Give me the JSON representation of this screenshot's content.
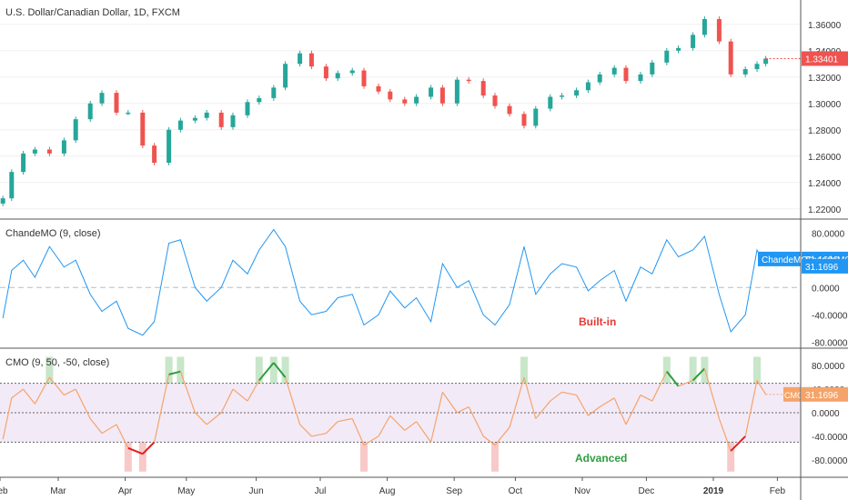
{
  "chart_data": [
    {
      "type": "candlestick",
      "title": "U.S. Dollar/Canadian Dollar, 1D, FXCM",
      "ylim": [
        1.215,
        1.375
      ],
      "y_ticks": [
        "1.22000",
        "1.24000",
        "1.26000",
        "1.28000",
        "1.30000",
        "1.32000",
        "1.34000",
        "1.36000"
      ],
      "last_price_label": "1.33401",
      "colors": {
        "up": "#26a69a",
        "down": "#ef5350",
        "price_tag": "#ef5350"
      },
      "series": [
        {
          "name": "close",
          "x": [
            1,
            4,
            8,
            12,
            17,
            22,
            26,
            31,
            35,
            40,
            44,
            49,
            53,
            58,
            62,
            67,
            71,
            76,
            80,
            85,
            89,
            94,
            98,
            103,
            107,
            112,
            116,
            121,
            125,
            130,
            134,
            139,
            143,
            148,
            152,
            157,
            161,
            166,
            170,
            175,
            180,
            184,
            189,
            193,
            198,
            202,
            206,
            211,
            215,
            220,
            224,
            229,
            233,
            238,
            242,
            247,
            251,
            256,
            260,
            263
          ],
          "values": [
            1.228,
            1.248,
            1.262,
            1.265,
            1.262,
            1.272,
            1.288,
            1.3,
            1.308,
            1.293,
            1.293,
            1.268,
            1.255,
            1.28,
            1.287,
            1.289,
            1.293,
            1.282,
            1.291,
            1.301,
            1.304,
            1.312,
            1.33,
            1.338,
            1.328,
            1.319,
            1.323,
            1.325,
            1.313,
            1.309,
            1.303,
            1.3,
            1.305,
            1.312,
            1.3,
            1.318,
            1.317,
            1.306,
            1.298,
            1.292,
            1.283,
            1.296,
            1.305,
            1.306,
            1.31,
            1.316,
            1.322,
            1.327,
            1.317,
            1.322,
            1.331,
            1.34,
            1.342,
            1.352,
            1.364,
            1.347,
            1.322,
            1.326,
            1.33,
            1.334
          ]
        }
      ]
    },
    {
      "type": "line",
      "title": "ChandeMO (9, close)",
      "annotation": "Built-in",
      "ylim": [
        -85,
        95
      ],
      "y_ticks": [
        "80.0000",
        "40.0000",
        "0.0000",
        "-40.0000",
        "-80.0000"
      ],
      "zero_line": 0,
      "last_value_label": "31.1696",
      "legend_label": "ChandeMO",
      "colors": {
        "line": "#2196f3",
        "tag": "#2196f3",
        "annotation": "#e53935"
      },
      "series": [
        {
          "name": "ChandeMO",
          "x": [
            1,
            4,
            8,
            12,
            17,
            22,
            26,
            31,
            35,
            40,
            44,
            49,
            53,
            58,
            62,
            67,
            71,
            76,
            80,
            85,
            89,
            94,
            98,
            103,
            107,
            112,
            116,
            121,
            125,
            130,
            134,
            139,
            143,
            148,
            152,
            157,
            161,
            166,
            170,
            175,
            180,
            184,
            189,
            193,
            198,
            202,
            206,
            211,
            215,
            220,
            224,
            229,
            233,
            238,
            242,
            247,
            251,
            256,
            260,
            263
          ],
          "values": [
            -45,
            25,
            40,
            15,
            60,
            30,
            40,
            -10,
            -35,
            -20,
            -60,
            -70,
            -50,
            65,
            70,
            0,
            -20,
            0,
            40,
            20,
            55,
            85,
            60,
            -20,
            -40,
            -35,
            -15,
            -10,
            -55,
            -40,
            -5,
            -30,
            -15,
            -50,
            35,
            0,
            10,
            -40,
            -55,
            -25,
            60,
            -10,
            20,
            35,
            30,
            -5,
            10,
            25,
            -20,
            30,
            20,
            70,
            45,
            55,
            75,
            -10,
            -65,
            -40,
            55,
            31.17
          ]
        }
      ]
    },
    {
      "type": "line",
      "title": "CMO (9, 50, -50, close)",
      "annotation": "Advanced",
      "ylim": [
        -105,
        105
      ],
      "y_ticks": [
        "80.0000",
        "40.0000",
        "0.0000",
        "-40.0000",
        "-80.0000"
      ],
      "upper_level": 50,
      "lower_level": -50,
      "zero_line": 0,
      "last_value_label": "31.1696",
      "legend_label": "CMO",
      "colors": {
        "line": "#f4a46a",
        "above": "#2e9e3f",
        "below": "#e02020",
        "highlight_above": "#c8e6c9",
        "highlight_below": "#f8c9c9",
        "band_fill": "#f3eaf7",
        "tag": "#f4a46a",
        "annotation": "#2e9e3f"
      },
      "series": [
        {
          "name": "CMO",
          "x": [
            1,
            4,
            8,
            12,
            17,
            22,
            26,
            31,
            35,
            40,
            44,
            49,
            53,
            58,
            62,
            67,
            71,
            76,
            80,
            85,
            89,
            94,
            98,
            103,
            107,
            112,
            116,
            121,
            125,
            130,
            134,
            139,
            143,
            148,
            152,
            157,
            161,
            166,
            170,
            175,
            180,
            184,
            189,
            193,
            198,
            202,
            206,
            211,
            215,
            220,
            224,
            229,
            233,
            238,
            242,
            247,
            251,
            256,
            260,
            263
          ],
          "values": [
            -45,
            25,
            40,
            15,
            60,
            30,
            40,
            -10,
            -35,
            -20,
            -60,
            -70,
            -50,
            65,
            70,
            0,
            -20,
            0,
            40,
            20,
            55,
            85,
            60,
            -20,
            -40,
            -35,
            -15,
            -10,
            -55,
            -40,
            -5,
            -30,
            -15,
            -50,
            35,
            0,
            10,
            -40,
            -55,
            -25,
            60,
            -10,
            20,
            35,
            30,
            -5,
            10,
            25,
            -20,
            30,
            20,
            70,
            45,
            55,
            75,
            -10,
            -65,
            -40,
            55,
            31.17
          ]
        }
      ]
    }
  ],
  "x_axis": {
    "ticks": [
      {
        "label": "Feb",
        "x": 0
      },
      {
        "label": "Mar",
        "x": 20
      },
      {
        "label": "Apr",
        "x": 43
      },
      {
        "label": "May",
        "x": 64
      },
      {
        "label": "Jun",
        "x": 88
      },
      {
        "label": "Jul",
        "x": 110
      },
      {
        "label": "Aug",
        "x": 133
      },
      {
        "label": "Sep",
        "x": 156
      },
      {
        "label": "Oct",
        "x": 177
      },
      {
        "label": "Nov",
        "x": 200
      },
      {
        "label": "Dec",
        "x": 222
      },
      {
        "label": "2019",
        "x": 245
      },
      {
        "label": "Feb",
        "x": 267
      }
    ],
    "xlim": [
      0,
      275
    ]
  }
}
